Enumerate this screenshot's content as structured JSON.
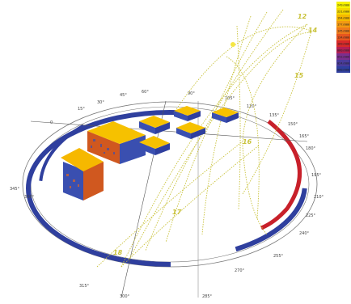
{
  "scene": {
    "background": "#ffffff",
    "ring_band_color": "#2f3f9e",
    "ring_highlight_color": "#c8202a",
    "sunpath_color": "#c9c23a",
    "gridline_color": "#555555"
  },
  "legend": {
    "values": [
      "249/000",
      "221/000",
      "194/000",
      "177/000",
      "145/000",
      "134/000",
      "109/000",
      "080/000",
      "052/000",
      "024/000",
      "000/000"
    ],
    "colors": [
      "#f7f300",
      "#f5d800",
      "#f5b800",
      "#f39a12",
      "#ee7b1c",
      "#e6551f",
      "#d82a2a",
      "#b42054",
      "#7a2f8e",
      "#4a3c9c",
      "#2f3f9e"
    ]
  },
  "compass_labels": [
    "0",
    "15°",
    "30°",
    "45°",
    "60°",
    "90°",
    "105°",
    "120°",
    "135°",
    "150°",
    "165°",
    "180°",
    "195°",
    "210°",
    "225°",
    "240°",
    "255°",
    "270°",
    "285°",
    "300°",
    "315°",
    "330°",
    "345°"
  ],
  "hour_labels": [
    "12",
    "14",
    "15",
    "16",
    "17",
    "18"
  ],
  "buildings": [
    {
      "name": "building-west-large",
      "roof": "#f6c100",
      "wall": "#d0581f"
    },
    {
      "name": "building-southwest-large",
      "roof": "#f6b800",
      "wall": "#3a4fb0"
    },
    {
      "name": "building-center-1",
      "roof": "#f6c100",
      "wall": "#3a4fb0"
    },
    {
      "name": "building-center-2",
      "roof": "#f6c100",
      "wall": "#3a4fb0"
    },
    {
      "name": "building-center-3",
      "roof": "#f6c100",
      "wall": "#3a4fb0"
    },
    {
      "name": "building-center-4",
      "roof": "#f6c100",
      "wall": "#3a4fb0"
    },
    {
      "name": "building-east",
      "roof": "#f6c100",
      "wall": "#3a4fb0"
    }
  ]
}
